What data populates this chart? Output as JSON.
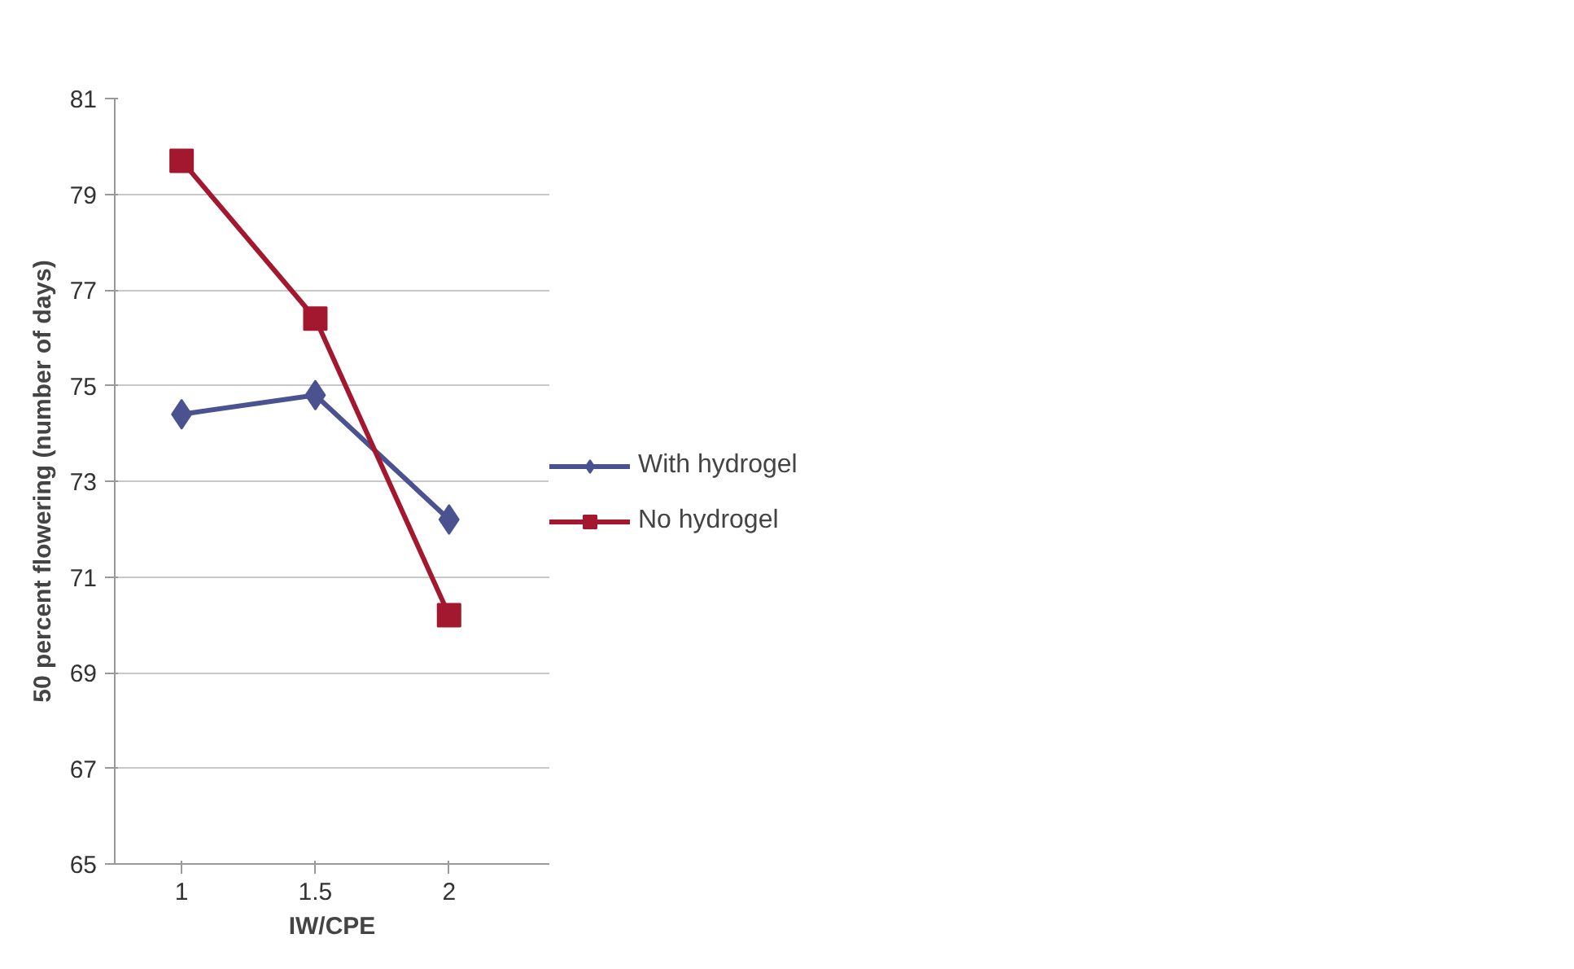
{
  "chart_data": {
    "type": "line",
    "xlabel": "IW/CPE",
    "ylabel": "50 percent flowering (number of days)",
    "categories": [
      "1",
      "1.5",
      "2"
    ],
    "ylim": [
      65,
      81
    ],
    "yticks": [
      65,
      67,
      69,
      71,
      73,
      75,
      77,
      79,
      81
    ],
    "grid": "y",
    "legend": "right",
    "series": [
      {
        "name": "With hydrogel",
        "color": "#4a5290",
        "marker": "diamond",
        "values": [
          74.4,
          74.8,
          72.2
        ]
      },
      {
        "name": "No hydrogel",
        "color": "#a3182e",
        "marker": "square",
        "values": [
          79.7,
          76.4,
          70.2
        ]
      }
    ]
  }
}
